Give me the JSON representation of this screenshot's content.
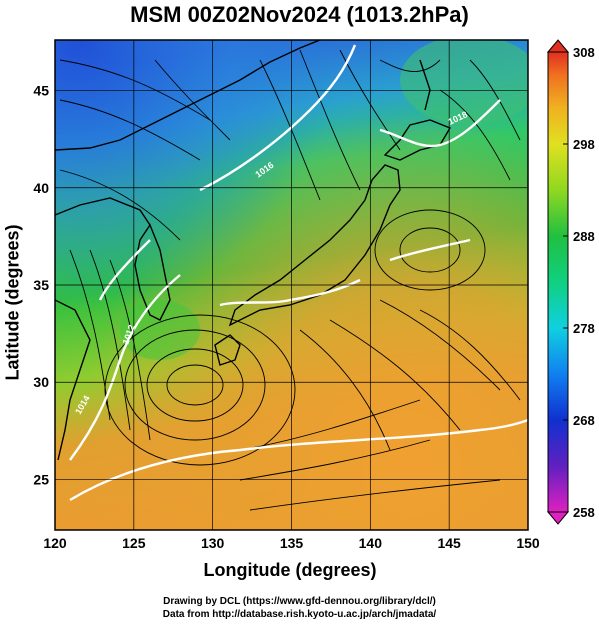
{
  "title": "MSM 00Z02Nov2024 (1013.2hPa)",
  "x_axis": {
    "label": "Longitude (degrees)",
    "min": 120,
    "max": 150,
    "ticks": [
      120,
      125,
      130,
      135,
      140,
      145,
      150
    ],
    "tick_labels": [
      "120",
      "125",
      "130",
      "135",
      "140",
      "145",
      "150"
    ]
  },
  "y_axis": {
    "label": "Latitude  (degrees)",
    "min": 22.4,
    "max": 47.6,
    "ticks": [
      25,
      30,
      35,
      40,
      45
    ],
    "tick_labels": [
      "25",
      "30",
      "35",
      "40",
      "45"
    ]
  },
  "colorbar": {
    "min": 258,
    "max": 308,
    "ticks": [
      258,
      268,
      278,
      288,
      298,
      308
    ],
    "tick_labels": [
      "258",
      "268",
      "278",
      "288",
      "298",
      "308"
    ],
    "colors": [
      "#e020c0",
      "#6020c0",
      "#1030d0",
      "#1080f0",
      "#10d0e0",
      "#10d080",
      "#20c040",
      "#90d820",
      "#e0e020",
      "#f0b020",
      "#f07020",
      "#e03020"
    ]
  },
  "contour_labels": [
    "1012",
    "1014",
    "1016",
    "1018"
  ],
  "credits": [
    "Drawing by DCL (https://www.gfd-dennou.org/library/dcl/)",
    "Data from http://database.rish.kyoto-u.ac.jp/arch/jmadata/"
  ],
  "colors": {
    "cold": "#2a7ad8",
    "mid": "#30c040",
    "warm": "#f0a030",
    "contour": "#ffffff",
    "streamline": "#000000"
  }
}
